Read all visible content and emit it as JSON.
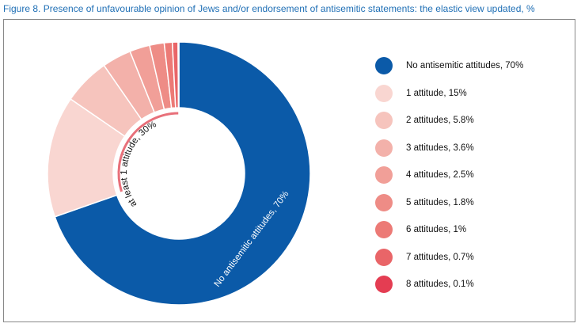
{
  "figure_title": "Figure 8. Presence of unfavourable opinion of Jews and/or endorsement of antisemitic statements:  the elastic view updated, %",
  "chart_data": {
    "type": "pie",
    "title": "Figure 8. Presence of unfavourable opinion of Jews and/or endorsement of antisemitic statements:  the elastic view updated, %",
    "donut": true,
    "unit": "%",
    "slices": [
      {
        "label": "No antisemitic attitudes, 70%",
        "value": 70,
        "color": "#0b5aa8"
      },
      {
        "label": "1 attitude, 15%",
        "value": 15,
        "color": "#f9d6d1"
      },
      {
        "label": "2 attitudes, 5.8%",
        "value": 5.8,
        "color": "#f6c4bd"
      },
      {
        "label": "3 attitudes, 3.6%",
        "value": 3.6,
        "color": "#f3b1aa"
      },
      {
        "label": "4 attitudes, 2.5%",
        "value": 2.5,
        "color": "#f19f98"
      },
      {
        "label": "5 attitudes, 1.8%",
        "value": 1.8,
        "color": "#ee8c86"
      },
      {
        "label": "6 attitudes, 1%",
        "value": 1,
        "color": "#ec7a76"
      },
      {
        "label": "7 attitudes, 0.7%",
        "value": 0.7,
        "color": "#e96568"
      },
      {
        "label": "8 attitudes, 0.1%",
        "value": 0.1,
        "color": "#e43d52"
      }
    ],
    "on_chart_labels": {
      "main": "No antisemitic attitudes, 70%",
      "group": "at least 1 attitude, 30%"
    },
    "group_arc_color": "#e8707a",
    "legend_position": "right"
  }
}
